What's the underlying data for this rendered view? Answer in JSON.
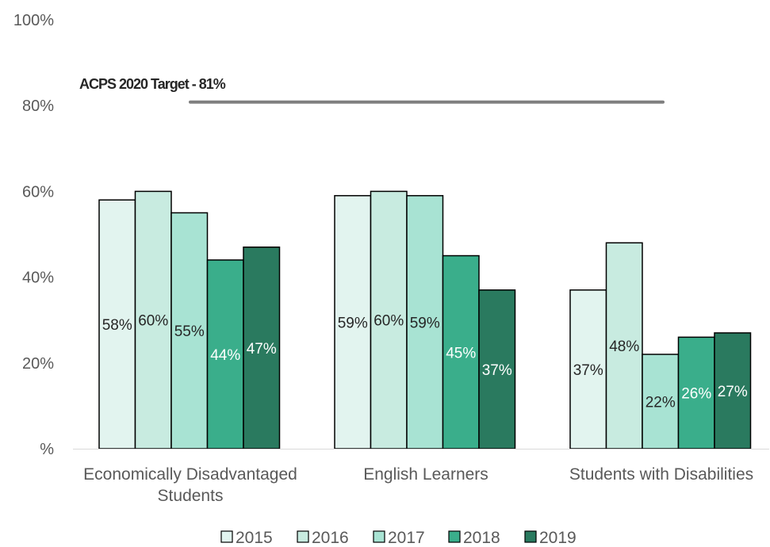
{
  "chart_data": {
    "type": "bar",
    "categories": [
      [
        "Economically Disadvantaged",
        "Students"
      ],
      [
        "English Learners"
      ],
      [
        "Students with Disabilities"
      ]
    ],
    "series": [
      {
        "name": "2015",
        "color": "#e2f4ef",
        "label_color": "#262626",
        "values": [
          58,
          59,
          37
        ]
      },
      {
        "name": "2016",
        "color": "#c8ebe0",
        "label_color": "#262626",
        "values": [
          60,
          60,
          48
        ]
      },
      {
        "name": "2017",
        "color": "#a8e3d3",
        "label_color": "#262626",
        "values": [
          55,
          59,
          22
        ]
      },
      {
        "name": "2018",
        "color": "#3aae8b",
        "label_color": "#ffffff",
        "values": [
          44,
          45,
          26
        ]
      },
      {
        "name": "2019",
        "color": "#2a7a5f",
        "label_color": "#ffffff",
        "values": [
          47,
          37,
          27
        ]
      }
    ],
    "data_labels": [
      [
        "58%",
        "59%",
        "37%"
      ],
      [
        "60%",
        "60%",
        "48%"
      ],
      [
        "55%",
        "59%",
        "22%"
      ],
      [
        "44%",
        "45%",
        "26%"
      ],
      [
        "47%",
        "37%",
        "27%"
      ]
    ],
    "y_ticks": [
      0,
      20,
      40,
      60,
      80,
      100
    ],
    "y_tick_labels": [
      "%",
      "20%",
      "40%",
      "60%",
      "80%",
      "100%"
    ],
    "ylim": [
      0,
      100
    ],
    "grid": false,
    "legend_position": "bottom",
    "reference_line": {
      "label": "ACPS 2020 Target - 81%",
      "value": 81,
      "color": "#7f7f7f"
    }
  }
}
